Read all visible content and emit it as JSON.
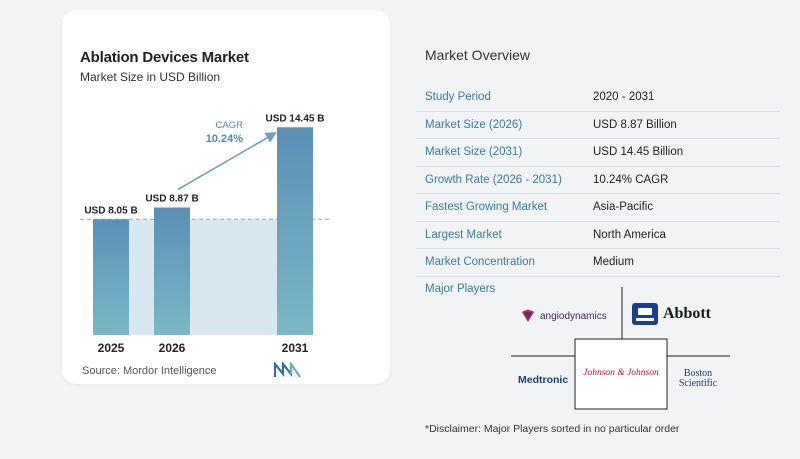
{
  "header": {
    "title": "Ablation Devices Market",
    "subtitle": "Market Size in USD Billion"
  },
  "chart_data": {
    "type": "bar",
    "categories": [
      "2025",
      "2026",
      "2031"
    ],
    "values": [
      8.05,
      8.87,
      14.45
    ],
    "data_labels": [
      "USD 8.05 B",
      "USD 8.87 B",
      "USD 14.45 B"
    ],
    "title": "Ablation Devices Market",
    "subtitle": "Market Size in USD Billion",
    "xlabel": "",
    "ylabel": "",
    "ylim": [
      0,
      16
    ],
    "grid": false,
    "annotation": {
      "label": "CAGR",
      "value": "10.24%"
    },
    "colors": {
      "bar_top": "#5b8fb6",
      "bar_bottom": "#7ab8c6",
      "shaded_area": "#d9e7f0",
      "arrow": "#6f9fbf",
      "reference_line": "#8fa9bd"
    }
  },
  "source": {
    "text": "Source:  Mordor Intelligence",
    "logo_icon": "mordor-intelligence-logo"
  },
  "overview": {
    "title": "Market Overview",
    "rows": [
      {
        "label": "Study Period",
        "value": "2020 - 2031"
      },
      {
        "label": "Market Size (2026)",
        "value": "USD 8.87 Billion"
      },
      {
        "label": "Market Size (2031)",
        "value": "USD 14.45 Billion"
      },
      {
        "label": "Growth Rate (2026 - 2031)",
        "value": "10.24% CAGR"
      },
      {
        "label": "Fastest Growing Market",
        "value": "Asia-Pacific"
      },
      {
        "label": "Largest Market",
        "value": "North America"
      },
      {
        "label": "Market Concentration",
        "value": "Medium"
      }
    ]
  },
  "major_players": {
    "title": "Major Players",
    "logos": [
      {
        "name": "angiodynamics",
        "text": "angiodynamics"
      },
      {
        "name": "abbott",
        "text": "Abbott"
      },
      {
        "name": "medtronic",
        "text": "Medtronic"
      },
      {
        "name": "johnson-johnson",
        "text": "Johnson & Johnson"
      },
      {
        "name": "boston-scientific",
        "text": "Boston Scientific"
      }
    ]
  },
  "disclaimer": "*Disclaimer: Major Players sorted in no particular order"
}
